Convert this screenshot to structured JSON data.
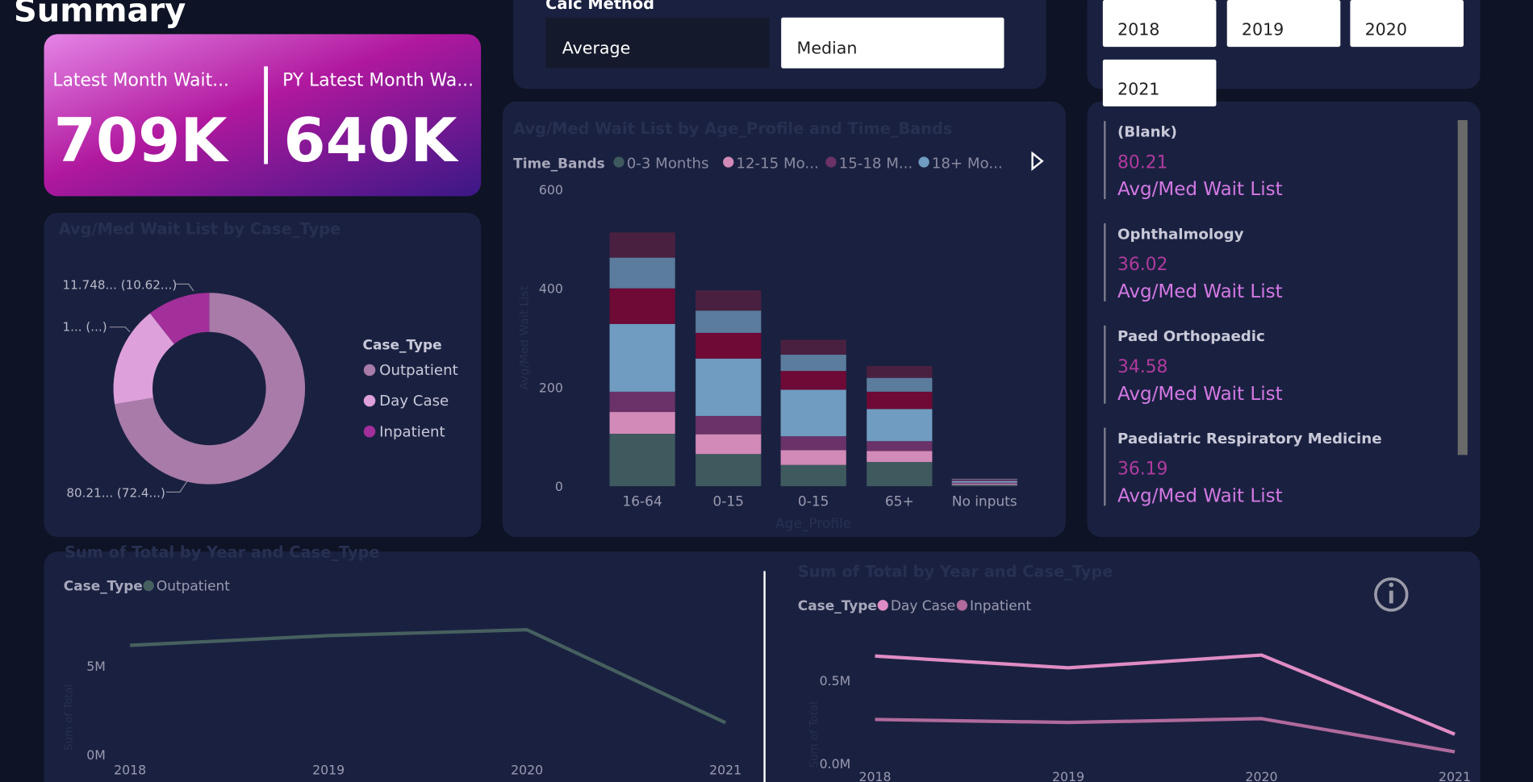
{
  "header": {
    "title": "Summary"
  },
  "calc_method": {
    "label": "Calc Method",
    "options": [
      "Average",
      "Median"
    ]
  },
  "year_slicer": {
    "options": [
      "2018",
      "2019",
      "2020",
      "2021"
    ]
  },
  "kpis": [
    {
      "label": "Latest Month Wait...",
      "value": "709K"
    },
    {
      "label": "PY Latest Month Wa...",
      "value": "640K"
    }
  ],
  "donut": {
    "type": "pie",
    "title": "Avg/Med Wait List by Case_Type",
    "legend_title": "Case_Type",
    "categories": [
      "Outpatient",
      "Day Case",
      "Inpatient"
    ],
    "values": [
      80.21,
      18.84,
      11.748
    ],
    "value_labels": [
      "80.21... (72.4...)",
      "1... (...)",
      "11.748... (10.62...)"
    ],
    "colors": [
      "#a87ba9",
      "#dda0da",
      "#a32f9b"
    ]
  },
  "bar_chart": {
    "type": "bar",
    "stacked": true,
    "title": "Avg/Med Wait List by Age_Profile and Time_Bands",
    "legend_title": "Time_Bands",
    "x_label": "Age_Profile",
    "y_label": "Avg/Med Wait List",
    "categories": [
      "16-64",
      "0-15",
      "0-15",
      "65+",
      "No inputs"
    ],
    "series": [
      {
        "name": "0-3 Months",
        "color": "#3f5a5e",
        "values": [
          106,
          65,
          43,
          49,
          3
        ]
      },
      {
        "name": "12-15 Mo...",
        "color": "#d28ab8",
        "values": [
          44,
          40,
          30,
          22,
          2
        ]
      },
      {
        "name": "15-18 M...",
        "color": "#6a3268",
        "values": [
          41,
          37,
          28,
          20,
          2
        ]
      },
      {
        "name": "18+ Mo...",
        "color": "#6f9cc0",
        "values": [
          137,
          116,
          94,
          65,
          4
        ]
      },
      {
        "color": "#6e0a35",
        "values": [
          72,
          52,
          38,
          35,
          2
        ]
      },
      {
        "color": "#5b7c9c",
        "values": [
          62,
          45,
          33,
          28,
          2
        ]
      },
      {
        "color": "#4a2040",
        "values": [
          51,
          41,
          30,
          24,
          1
        ]
      }
    ],
    "ylim": [
      0,
      600
    ],
    "yticks": [
      0,
      200,
      400,
      600
    ]
  },
  "list": {
    "items": [
      {
        "name": "(Blank)",
        "value": 80.21,
        "measure": "Avg/Med Wait List"
      },
      {
        "name": "Ophthalmology",
        "value": 36.02,
        "measure": "Avg/Med Wait List"
      },
      {
        "name": "Paed Orthopaedic",
        "value": 34.58,
        "measure": "Avg/Med Wait List"
      },
      {
        "name": "Paediatric Respiratory Medicine",
        "value": 36.19,
        "measure": "Avg/Med Wait List"
      }
    ]
  },
  "line_charts": [
    {
      "type": "line",
      "title": "Sum of Total by Year and Case_Type",
      "legend_title": "Case_Type",
      "y_label": "Sum of Total",
      "x": [
        2018,
        2019,
        2020,
        2021
      ],
      "xlim": [
        2018,
        2021
      ],
      "series": [
        {
          "name": "Outpatient",
          "color": "#46605f",
          "values": [
            6150000,
            6700000,
            7030000,
            1800000
          ]
        }
      ],
      "ylim": [
        0,
        7500000
      ],
      "yticks": [
        {
          "value": 0,
          "label": "0M"
        },
        {
          "value": 5000000,
          "label": "5M"
        }
      ]
    },
    {
      "type": "line",
      "title": "Sum of Total by Year and Case_Type",
      "legend_title": "Case_Type",
      "y_label": "Sum of Total",
      "x": [
        2018,
        2019,
        2020,
        2021
      ],
      "xlim": [
        2018,
        2021
      ],
      "series": [
        {
          "name": "Day Case",
          "color": "#e08cc4",
          "values": [
            647000,
            576000,
            653000,
            176000
          ]
        },
        {
          "name": "Inpatient",
          "color": "#b06a9c",
          "values": [
            265000,
            247000,
            270000,
            70000
          ]
        }
      ],
      "ylim": [
        0,
        700000
      ],
      "yticks": [
        {
          "value": 0,
          "label": "0.0M"
        },
        {
          "value": 500000,
          "label": "0.5M"
        }
      ]
    }
  ]
}
